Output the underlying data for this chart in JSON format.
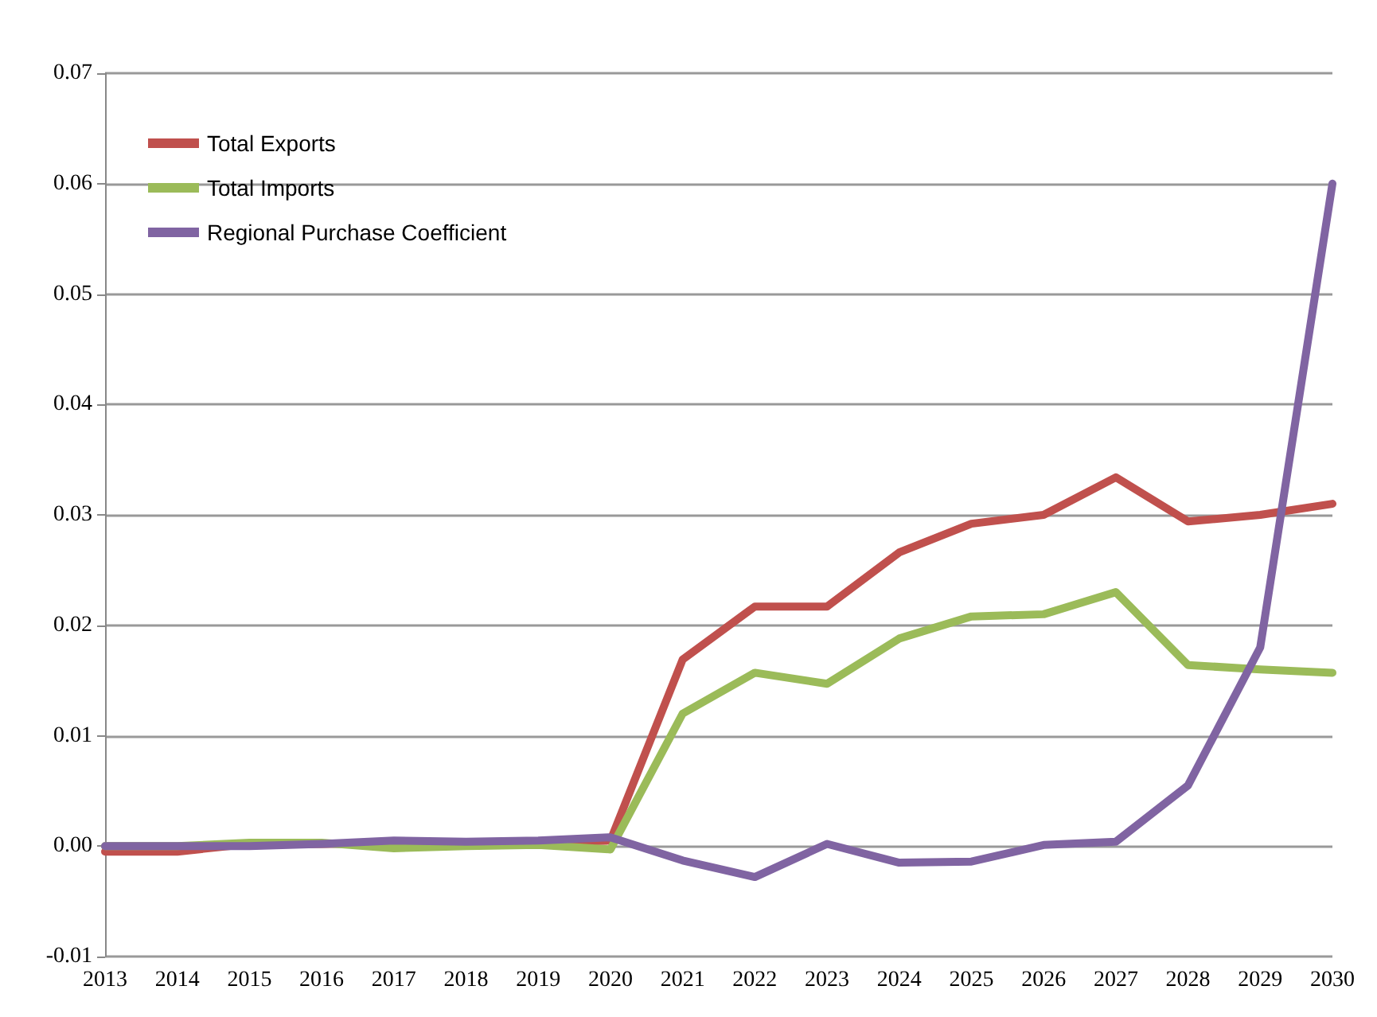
{
  "chart_data": {
    "type": "line",
    "categories": [
      "2013",
      "2014",
      "2015",
      "2016",
      "2017",
      "2018",
      "2019",
      "2020",
      "2021",
      "2022",
      "2023",
      "2024",
      "2025",
      "2026",
      "2027",
      "2028",
      "2029",
      "2030"
    ],
    "series": [
      {
        "name": "Total Exports",
        "color": "#c0504d",
        "values": [
          -0.0005,
          -0.0005,
          0.0002,
          0.0002,
          0.0003,
          0.0003,
          0.0003,
          0.0005,
          0.0169,
          0.0217,
          0.0217,
          0.0266,
          0.0292,
          0.03,
          0.0334,
          0.0294,
          0.03,
          0.031
        ]
      },
      {
        "name": "Total Imports",
        "color": "#9bbb59",
        "values": [
          0,
          0,
          0.0003,
          0.0003,
          -0.0002,
          0,
          0.0001,
          -0.0003,
          0.012,
          0.0157,
          0.0147,
          0.0188,
          0.0208,
          0.021,
          0.023,
          0.0164,
          0.016,
          0.0157
        ]
      },
      {
        "name": "Regional Purchase Coefficient",
        "color": "#8064a2",
        "values": [
          0,
          0,
          0,
          0.0002,
          0.0005,
          0.0004,
          0.0005,
          0.0008,
          -0.0013,
          -0.0028,
          0.0002,
          -0.0015,
          -0.0014,
          0.0001,
          0.0004,
          0.0055,
          0.018,
          0.06
        ]
      }
    ],
    "ylim": [
      -0.01,
      0.07
    ],
    "yticks": [
      -0.01,
      {
        "value": 0,
        "label": "0.00"
      },
      0.01,
      0.02,
      0.03,
      0.04,
      0.05,
      0.06,
      0.07
    ],
    "grid": "y",
    "legend": "top left",
    "marker": "none",
    "line_style": "solid"
  }
}
